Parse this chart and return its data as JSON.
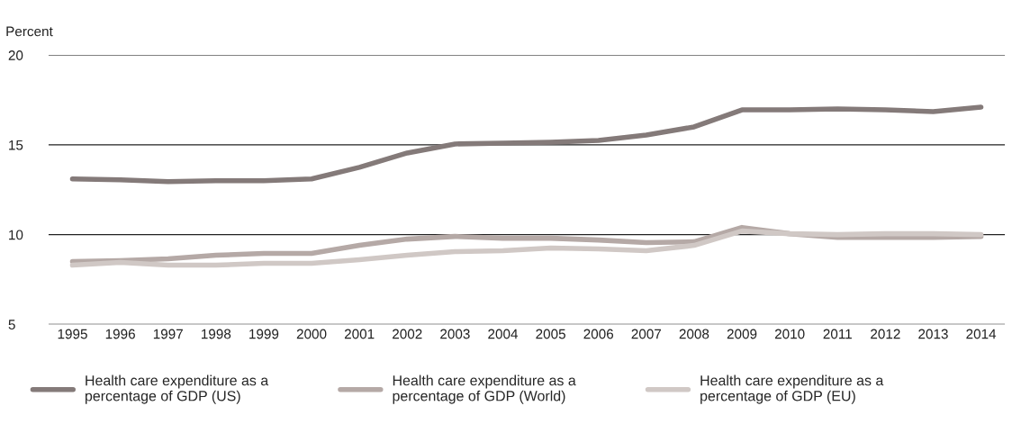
{
  "chart_data": {
    "type": "line",
    "ylabel": "Percent",
    "categories": [
      "1995",
      "1996",
      "1997",
      "1998",
      "1999",
      "2000",
      "2001",
      "2002",
      "2003",
      "2004",
      "2005",
      "2006",
      "2007",
      "2008",
      "2009",
      "2010",
      "2011",
      "2012",
      "2013",
      "2014"
    ],
    "series": [
      {
        "name": "Health care expenditure as a\npercentage of GDP (US)",
        "color": "#847a79",
        "values": [
          13.1,
          13.05,
          12.95,
          13.0,
          13.0,
          13.1,
          13.75,
          14.55,
          15.05,
          15.1,
          15.15,
          15.25,
          15.55,
          16.0,
          16.95,
          16.95,
          17.0,
          16.95,
          16.85,
          17.1
        ]
      },
      {
        "name": "Health care expenditure as a\npercentage of GDP (World)",
        "color": "#b5a9a6",
        "values": [
          8.5,
          8.55,
          8.65,
          8.85,
          8.95,
          8.95,
          9.4,
          9.75,
          9.9,
          9.8,
          9.8,
          9.7,
          9.55,
          9.6,
          10.4,
          10.05,
          9.85,
          9.85,
          9.85,
          9.9
        ]
      },
      {
        "name": "Health care expenditure as a\npercentage of GDP (EU)",
        "color": "#d0c8c5",
        "values": [
          8.3,
          8.45,
          8.3,
          8.3,
          8.4,
          8.4,
          8.6,
          8.85,
          9.05,
          9.1,
          9.25,
          9.2,
          9.1,
          9.4,
          10.2,
          10.05,
          10.0,
          10.05,
          10.05,
          10.0
        ]
      }
    ],
    "ylim": [
      5,
      20
    ],
    "yticks": [
      5,
      10,
      15,
      20
    ],
    "grid": "y",
    "legend": "bottom",
    "marker": "none",
    "line_style": "solid"
  }
}
